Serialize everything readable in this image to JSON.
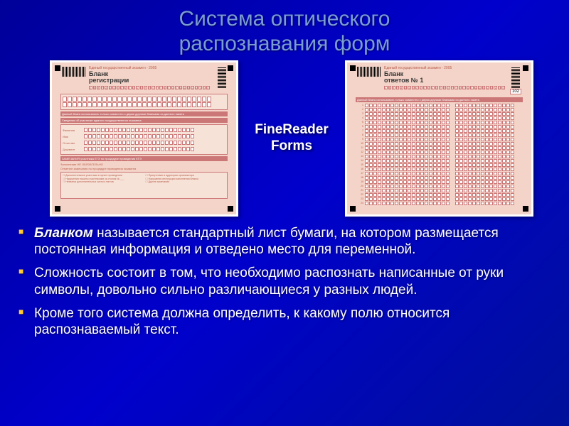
{
  "title_line1": "Система оптического",
  "title_line2": "распознавания форм",
  "center_label_line1": "FineReader",
  "center_label_line2": "Forms",
  "form_left": {
    "header_small": "Единый государственный экзамен - 2005",
    "header_big": "Бланк\nрегистрации",
    "alphabet": "АБВГДЕЖЗИКЛМНОПРСТУФХЦЧШЩЪЫЬЭЮЯ",
    "digits": "1234567890",
    "warn_bar": "Данный бланк использовать только совместно с двумя другими бланками из данного пакета",
    "section_title": "Сведения об участнике единого государственного экзамена",
    "labels": [
      "Фамилия",
      "Имя",
      "Отчество",
      "Документ"
    ],
    "notice": "ЗАМЕЧАНИЯ участника ЕГЭ по процедуре проведения ЕГЭ",
    "fill_note": "Заполнение НЕ ОБЯЗАТЕЛЬНО",
    "mark_note": "Отметьте        замечания по процедуре проведения экзамена"
  },
  "form_right": {
    "header_small": "Единый государственный экзамен - 2005",
    "header_big": "Бланк\nответов № 1",
    "code": "102",
    "alphabet": "АБВГДЕЖЗИКЛМНОПРСТУФХЦЧШЩЪЫЬЭЮЯ",
    "warn_bar": "Данный бланк использовать только совместно с двумя другими бланками из данного пакета",
    "row_numbers": [
      "1",
      "2",
      "3",
      "4",
      "5",
      "6",
      "7",
      "8",
      "9",
      "10",
      "11",
      "12",
      "13",
      "14",
      "15",
      "16",
      "17",
      "18",
      "19",
      "20",
      "21",
      "22",
      "23",
      "24",
      "25"
    ]
  },
  "bullets": [
    {
      "emph": "Бланком",
      "rest": " называется стандартный лист бумаги, на котором размещается постоянная информация и отведено место для переменной."
    },
    {
      "emph": "",
      "rest": " Сложность состоит в том, что необходимо распознать написанные от руки символы, довольно сильно различающиеся у разных людей."
    },
    {
      "emph": "",
      "rest": "Кроме того система  должна определить, к какому полю относится распознаваемый текст."
    }
  ],
  "colors": {
    "title": "#7a9cd4",
    "bullet_marker": "#ffcc33",
    "form_bg": "#f4d4c8",
    "form_accent": "#b85c4a"
  }
}
